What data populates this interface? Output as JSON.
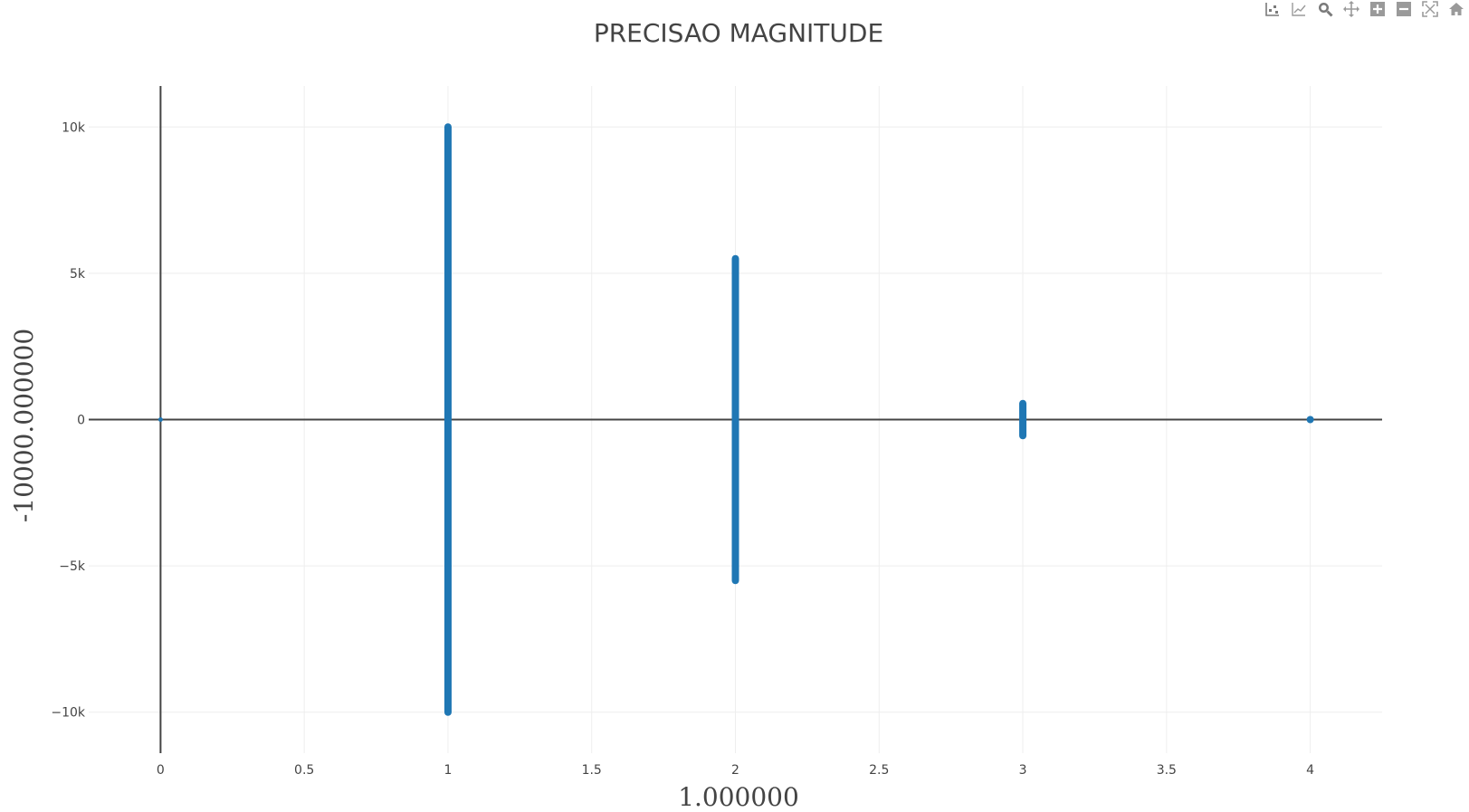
{
  "toolbar": {
    "buttons": [
      {
        "name": "compare-hover-icon"
      },
      {
        "name": "closest-hover-icon"
      },
      {
        "name": "zoom-icon"
      },
      {
        "name": "pan-icon"
      },
      {
        "name": "zoom-in-icon"
      },
      {
        "name": "zoom-out-icon"
      },
      {
        "name": "autoscale-icon"
      },
      {
        "name": "reset-axes-icon"
      }
    ]
  },
  "colors": {
    "marker": "#1f77b4",
    "grid": "#eeeeee",
    "zeroline": "#444444",
    "text": "#444444"
  },
  "chart_data": {
    "type": "scatter",
    "title": "PRECISAO MAGNITUDE",
    "xlabel": "1.000000",
    "ylabel": "-10000.000000",
    "xlim": [
      -0.25,
      4.25
    ],
    "ylim": [
      -11400,
      11400
    ],
    "x_ticks": [
      0,
      0.5,
      1,
      1.5,
      2,
      2.5,
      3,
      3.5,
      4
    ],
    "x_tick_labels": [
      "0",
      "0.5",
      "1",
      "1.5",
      "2",
      "2.5",
      "3",
      "3.5",
      "4"
    ],
    "y_ticks": [
      -10000,
      -5000,
      0,
      5000,
      10000
    ],
    "y_tick_labels": [
      "−10k",
      "−5k",
      "0",
      "5k",
      "10k"
    ],
    "grid": true,
    "series": [
      {
        "points": [
          {
            "x": 0,
            "ymin": 0,
            "ymax": 0
          },
          {
            "x": 1,
            "ymin": -10000,
            "ymax": 10000
          },
          {
            "x": 2,
            "ymin": -5500,
            "ymax": 5500
          },
          {
            "x": 3,
            "ymin": -550,
            "ymax": 550
          },
          {
            "x": 4,
            "ymin": 0,
            "ymax": 0
          }
        ]
      }
    ]
  }
}
